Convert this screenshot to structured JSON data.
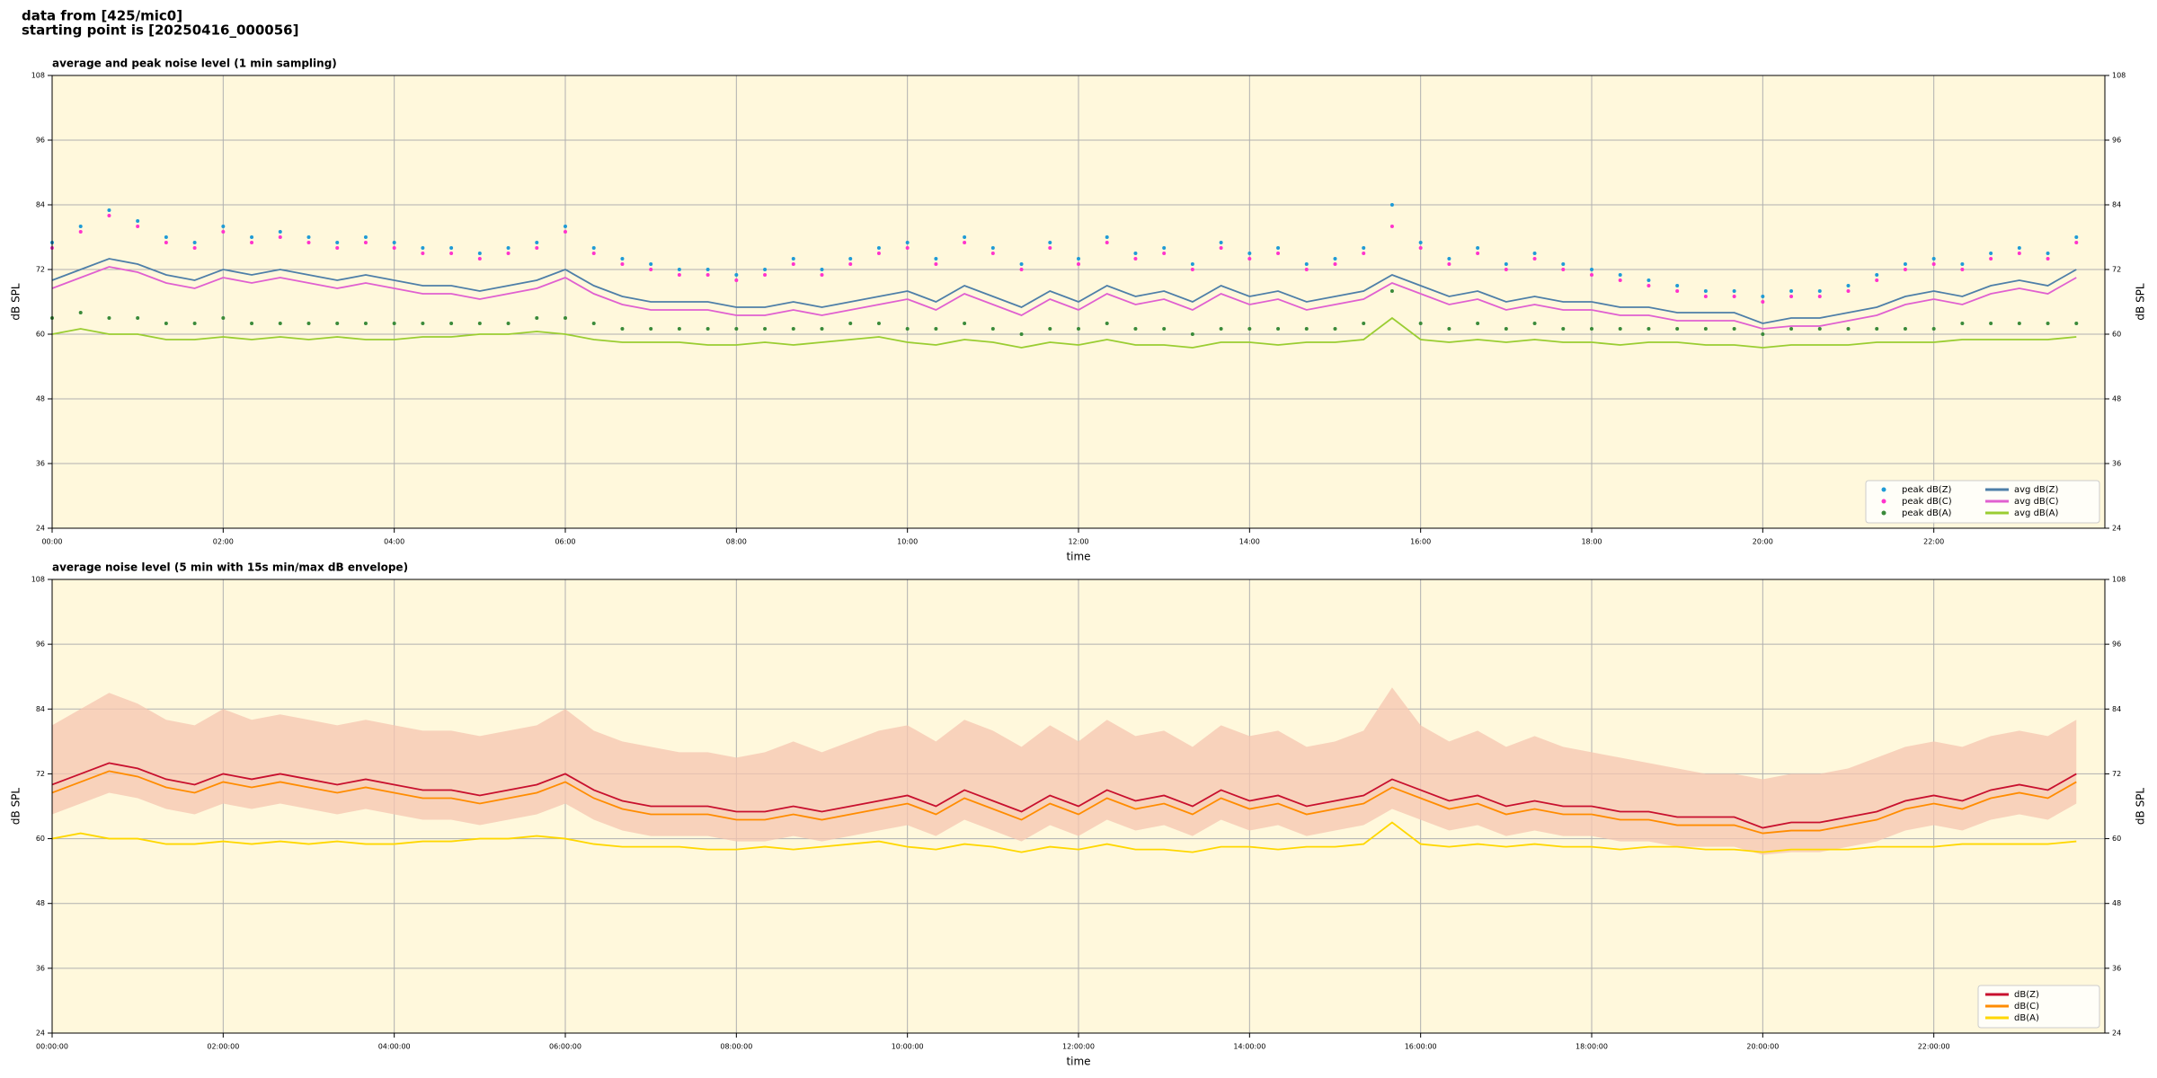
{
  "header": {
    "line1": "data from [425/mic0]",
    "line2": "starting point is [20250416_000056]"
  },
  "chart_data": [
    {
      "type": "line",
      "title": "average and peak noise level (1 min sampling)",
      "xlabel": "time",
      "ylabel": "dB SPL",
      "y2label": "dB SPL",
      "background": "#fff8dc",
      "grid": true,
      "legend": "lower right",
      "legend_columns": 2,
      "xlim": [
        0,
        1440
      ],
      "xticks": [
        {
          "value": 0,
          "label": "00:00"
        },
        {
          "value": 120,
          "label": "02:00"
        },
        {
          "value": 240,
          "label": "04:00"
        },
        {
          "value": 360,
          "label": "06:00"
        },
        {
          "value": 480,
          "label": "08:00"
        },
        {
          "value": 600,
          "label": "10:00"
        },
        {
          "value": 720,
          "label": "12:00"
        },
        {
          "value": 840,
          "label": "14:00"
        },
        {
          "value": 960,
          "label": "16:00"
        },
        {
          "value": 1080,
          "label": "18:00"
        },
        {
          "value": 1200,
          "label": "20:00"
        },
        {
          "value": 1320,
          "label": "22:00"
        }
      ],
      "ylim": [
        24,
        108
      ],
      "yticks": [
        24,
        36,
        48,
        60,
        72,
        84,
        96,
        108
      ],
      "y2lim": [
        24,
        108
      ],
      "y2ticks": [
        24,
        36,
        48,
        60,
        72,
        84,
        96,
        108
      ],
      "x": [
        0,
        20,
        40,
        60,
        80,
        100,
        120,
        140,
        160,
        180,
        200,
        220,
        240,
        260,
        280,
        300,
        320,
        340,
        360,
        380,
        400,
        420,
        440,
        460,
        480,
        500,
        520,
        540,
        560,
        580,
        600,
        620,
        640,
        660,
        680,
        700,
        720,
        740,
        760,
        780,
        800,
        820,
        840,
        860,
        880,
        900,
        920,
        940,
        960,
        980,
        1000,
        1020,
        1040,
        1060,
        1080,
        1100,
        1120,
        1140,
        1160,
        1180,
        1200,
        1220,
        1240,
        1260,
        1280,
        1300,
        1320,
        1340,
        1360,
        1380,
        1400,
        1420
      ],
      "series": [
        {
          "name": "peak dB(Z)",
          "color": "#1f9bd6",
          "marker": true,
          "values": [
            77,
            80,
            83,
            81,
            78,
            77,
            80,
            78,
            79,
            78,
            77,
            78,
            77,
            76,
            76,
            75,
            76,
            77,
            80,
            76,
            74,
            73,
            72,
            72,
            71,
            72,
            74,
            72,
            74,
            76,
            77,
            74,
            78,
            76,
            73,
            77,
            74,
            78,
            75,
            76,
            73,
            77,
            75,
            76,
            73,
            74,
            76,
            84,
            77,
            74,
            76,
            73,
            75,
            73,
            72,
            71,
            70,
            69,
            68,
            68,
            67,
            68,
            68,
            69,
            71,
            73,
            74,
            73,
            75,
            76,
            75,
            78
          ]
        },
        {
          "name": "peak dB(C)",
          "color": "#ff33cc",
          "marker": true,
          "values": [
            76,
            79,
            82,
            80,
            77,
            76,
            79,
            77,
            78,
            77,
            76,
            77,
            76,
            75,
            75,
            74,
            75,
            76,
            79,
            75,
            73,
            72,
            71,
            71,
            70,
            71,
            73,
            71,
            73,
            75,
            76,
            73,
            77,
            75,
            72,
            76,
            73,
            77,
            74,
            75,
            72,
            76,
            74,
            75,
            72,
            73,
            75,
            80,
            76,
            73,
            75,
            72,
            74,
            72,
            71,
            70,
            69,
            68,
            67,
            67,
            66,
            67,
            67,
            68,
            70,
            72,
            73,
            72,
            74,
            75,
            74,
            77
          ]
        },
        {
          "name": "peak dB(A)",
          "color": "#3a8a3a",
          "marker": true,
          "values": [
            63,
            64,
            63,
            63,
            62,
            62,
            63,
            62,
            62,
            62,
            62,
            62,
            62,
            62,
            62,
            62,
            62,
            63,
            63,
            62,
            61,
            61,
            61,
            61,
            61,
            61,
            61,
            61,
            62,
            62,
            61,
            61,
            62,
            61,
            60,
            61,
            61,
            62,
            61,
            61,
            60,
            61,
            61,
            61,
            61,
            61,
            62,
            68,
            62,
            61,
            62,
            61,
            62,
            61,
            61,
            61,
            61,
            61,
            61,
            61,
            60,
            61,
            61,
            61,
            61,
            61,
            61,
            62,
            62,
            62,
            62,
            62
          ]
        },
        {
          "name": "avg dB(Z)",
          "color": "#4e7fa8",
          "marker": false,
          "values": [
            70,
            72,
            74,
            73,
            71,
            70,
            72,
            71,
            72,
            71,
            70,
            71,
            70,
            69,
            69,
            68,
            69,
            70,
            72,
            69,
            67,
            66,
            66,
            66,
            65,
            65,
            66,
            65,
            66,
            67,
            68,
            66,
            69,
            67,
            65,
            68,
            66,
            69,
            67,
            68,
            66,
            69,
            67,
            68,
            66,
            67,
            68,
            71,
            69,
            67,
            68,
            66,
            67,
            66,
            66,
            65,
            65,
            64,
            64,
            64,
            62,
            63,
            63,
            64,
            65,
            67,
            68,
            67,
            69,
            70,
            69,
            72
          ]
        },
        {
          "name": "avg dB(C)",
          "color": "#e060d0",
          "marker": false,
          "values": [
            68.5,
            70.5,
            72.5,
            71.5,
            69.5,
            68.5,
            70.5,
            69.5,
            70.5,
            69.5,
            68.5,
            69.5,
            68.5,
            67.5,
            67.5,
            66.5,
            67.5,
            68.5,
            70.5,
            67.5,
            65.5,
            64.5,
            64.5,
            64.5,
            63.5,
            63.5,
            64.5,
            63.5,
            64.5,
            65.5,
            66.5,
            64.5,
            67.5,
            65.5,
            63.5,
            66.5,
            64.5,
            67.5,
            65.5,
            66.5,
            64.5,
            67.5,
            65.5,
            66.5,
            64.5,
            65.5,
            66.5,
            69.5,
            67.5,
            65.5,
            66.5,
            64.5,
            65.5,
            64.5,
            64.5,
            63.5,
            63.5,
            62.5,
            62.5,
            62.5,
            61,
            61.5,
            61.5,
            62.5,
            63.5,
            65.5,
            66.5,
            65.5,
            67.5,
            68.5,
            67.5,
            70.5
          ]
        },
        {
          "name": "avg dB(A)",
          "color": "#9acd32",
          "marker": false,
          "values": [
            60,
            61,
            60,
            60,
            59,
            59,
            59.5,
            59,
            59.5,
            59,
            59.5,
            59,
            59,
            59.5,
            59.5,
            60,
            60,
            60.5,
            60,
            59,
            58.5,
            58.5,
            58.5,
            58,
            58,
            58.5,
            58,
            58.5,
            59,
            59.5,
            58.5,
            58,
            59,
            58.5,
            57.5,
            58.5,
            58,
            59,
            58,
            58,
            57.5,
            58.5,
            58.5,
            58,
            58.5,
            58.5,
            59,
            63,
            59,
            58.5,
            59,
            58.5,
            59,
            58.5,
            58.5,
            58,
            58.5,
            58.5,
            58,
            58,
            57.5,
            58,
            58,
            58,
            58.5,
            58.5,
            58.5,
            59,
            59,
            59,
            59,
            59.5
          ]
        }
      ]
    },
    {
      "type": "line",
      "title": "average noise level (5 min with 15s min/max dB envelope)",
      "xlabel": "time",
      "ylabel": "dB SPL",
      "y2label": "dB SPL",
      "background": "#fff8dc",
      "grid": true,
      "legend": "lower right",
      "legend_columns": 1,
      "xlim": [
        0,
        1440
      ],
      "xticks": [
        {
          "value": 0,
          "label": "00:00:00"
        },
        {
          "value": 120,
          "label": "02:00:00"
        },
        {
          "value": 240,
          "label": "04:00:00"
        },
        {
          "value": 360,
          "label": "06:00:00"
        },
        {
          "value": 480,
          "label": "08:00:00"
        },
        {
          "value": 600,
          "label": "10:00:00"
        },
        {
          "value": 720,
          "label": "12:00:00"
        },
        {
          "value": 840,
          "label": "14:00:00"
        },
        {
          "value": 960,
          "label": "16:00:00"
        },
        {
          "value": 1080,
          "label": "18:00:00"
        },
        {
          "value": 1200,
          "label": "20:00:00"
        },
        {
          "value": 1320,
          "label": "22:00:00"
        }
      ],
      "ylim": [
        24,
        108
      ],
      "yticks": [
        24,
        36,
        48,
        60,
        72,
        84,
        96,
        108
      ],
      "y2lim": [
        24,
        108
      ],
      "y2ticks": [
        24,
        36,
        48,
        60,
        72,
        84,
        96,
        108
      ],
      "x": [
        0,
        20,
        40,
        60,
        80,
        100,
        120,
        140,
        160,
        180,
        200,
        220,
        240,
        260,
        280,
        300,
        320,
        340,
        360,
        380,
        400,
        420,
        440,
        460,
        480,
        500,
        520,
        540,
        560,
        580,
        600,
        620,
        640,
        660,
        680,
        700,
        720,
        740,
        760,
        780,
        800,
        820,
        840,
        860,
        880,
        900,
        920,
        940,
        960,
        980,
        1000,
        1020,
        1040,
        1060,
        1080,
        1100,
        1120,
        1140,
        1160,
        1180,
        1200,
        1220,
        1240,
        1260,
        1280,
        1300,
        1320,
        1340,
        1360,
        1380,
        1400,
        1420
      ],
      "envelope": {
        "color": "#f5c6b0",
        "min": [
          64.5,
          66.5,
          68.5,
          67.5,
          65.5,
          64.5,
          66.5,
          65.5,
          66.5,
          65.5,
          64.5,
          65.5,
          64.5,
          63.5,
          63.5,
          62.5,
          63.5,
          64.5,
          66.5,
          63.5,
          61.5,
          60.5,
          60.5,
          60.5,
          59.5,
          59.5,
          60.5,
          59.5,
          60.5,
          61.5,
          62.5,
          60.5,
          63.5,
          61.5,
          59.5,
          62.5,
          60.5,
          63.5,
          61.5,
          62.5,
          60.5,
          63.5,
          61.5,
          62.5,
          60.5,
          61.5,
          62.5,
          65.5,
          63.5,
          61.5,
          62.5,
          60.5,
          61.5,
          60.5,
          60.5,
          59.5,
          59.5,
          58.5,
          58.5,
          58.5,
          57,
          57.5,
          57.5,
          58.5,
          59.5,
          61.5,
          62.5,
          61.5,
          63.5,
          64.5,
          63.5,
          66.5
        ],
        "max": [
          81,
          84,
          87,
          85,
          82,
          81,
          84,
          82,
          83,
          82,
          81,
          82,
          81,
          80,
          80,
          79,
          80,
          81,
          84,
          80,
          78,
          77,
          76,
          76,
          75,
          76,
          78,
          76,
          78,
          80,
          81,
          78,
          82,
          80,
          77,
          81,
          78,
          82,
          79,
          80,
          77,
          81,
          79,
          80,
          77,
          78,
          80,
          88,
          81,
          78,
          80,
          77,
          79,
          77,
          76,
          75,
          74,
          73,
          72,
          72,
          71,
          72,
          72,
          73,
          75,
          77,
          78,
          77,
          79,
          80,
          79,
          82
        ]
      },
      "series": [
        {
          "name": "dB(Z)",
          "color": "#c8102e",
          "marker": false,
          "values": [
            70,
            72,
            74,
            73,
            71,
            70,
            72,
            71,
            72,
            71,
            70,
            71,
            70,
            69,
            69,
            68,
            69,
            70,
            72,
            69,
            67,
            66,
            66,
            66,
            65,
            65,
            66,
            65,
            66,
            67,
            68,
            66,
            69,
            67,
            65,
            68,
            66,
            69,
            67,
            68,
            66,
            69,
            67,
            68,
            66,
            67,
            68,
            71,
            69,
            67,
            68,
            66,
            67,
            66,
            66,
            65,
            65,
            64,
            64,
            64,
            62,
            63,
            63,
            64,
            65,
            67,
            68,
            67,
            69,
            70,
            69,
            72
          ]
        },
        {
          "name": "dB(C)",
          "color": "#ff8c00",
          "marker": false,
          "values": [
            68.5,
            70.5,
            72.5,
            71.5,
            69.5,
            68.5,
            70.5,
            69.5,
            70.5,
            69.5,
            68.5,
            69.5,
            68.5,
            67.5,
            67.5,
            66.5,
            67.5,
            68.5,
            70.5,
            67.5,
            65.5,
            64.5,
            64.5,
            64.5,
            63.5,
            63.5,
            64.5,
            63.5,
            64.5,
            65.5,
            66.5,
            64.5,
            67.5,
            65.5,
            63.5,
            66.5,
            64.5,
            67.5,
            65.5,
            66.5,
            64.5,
            67.5,
            65.5,
            66.5,
            64.5,
            65.5,
            66.5,
            69.5,
            67.5,
            65.5,
            66.5,
            64.5,
            65.5,
            64.5,
            64.5,
            63.5,
            63.5,
            62.5,
            62.5,
            62.5,
            61,
            61.5,
            61.5,
            62.5,
            63.5,
            65.5,
            66.5,
            65.5,
            67.5,
            68.5,
            67.5,
            70.5
          ]
        },
        {
          "name": "dB(A)",
          "color": "#ffd700",
          "marker": false,
          "values": [
            60,
            61,
            60,
            60,
            59,
            59,
            59.5,
            59,
            59.5,
            59,
            59.5,
            59,
            59,
            59.5,
            59.5,
            60,
            60,
            60.5,
            60,
            59,
            58.5,
            58.5,
            58.5,
            58,
            58,
            58.5,
            58,
            58.5,
            59,
            59.5,
            58.5,
            58,
            59,
            58.5,
            57.5,
            58.5,
            58,
            59,
            58,
            58,
            57.5,
            58.5,
            58.5,
            58,
            58.5,
            58.5,
            59,
            63,
            59,
            58.5,
            59,
            58.5,
            59,
            58.5,
            58.5,
            58,
            58.5,
            58.5,
            58,
            58,
            57.5,
            58,
            58,
            58,
            58.5,
            58.5,
            58.5,
            59,
            59,
            59,
            59,
            59.5
          ]
        }
      ]
    }
  ]
}
